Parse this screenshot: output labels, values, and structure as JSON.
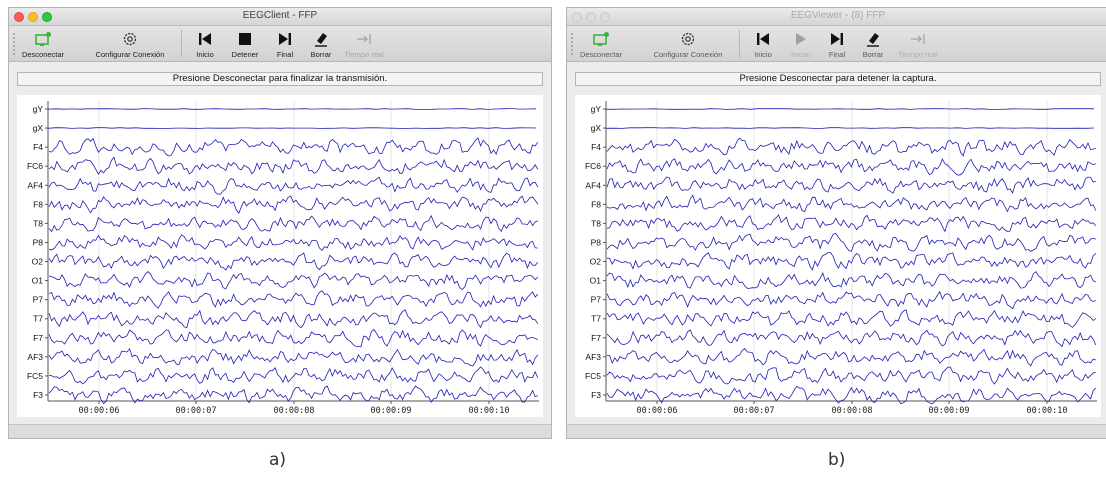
{
  "colors": {
    "trace": "#1e1eb4",
    "grid": "#e6e6e6",
    "accent_green": "#3cb43c"
  },
  "channels": [
    "gY",
    "gX",
    "F4",
    "FC6",
    "AF4",
    "F8",
    "T8",
    "P8",
    "O2",
    "O1",
    "P7",
    "T7",
    "F7",
    "AF3",
    "FC5",
    "F3"
  ],
  "time_ticks": [
    "00:00:06",
    "00:00:07",
    "00:00:08",
    "00:00:09",
    "00:00:10"
  ],
  "windows": [
    {
      "id": "a",
      "title": "EEGClient - FFP",
      "state": "active",
      "toolbar": [
        {
          "key": "disconnect",
          "label": "Desconectar",
          "icon": "disconnect-icon",
          "enabled": true
        },
        {
          "key": "config",
          "label": "Configurar Conexión",
          "icon": "gear-icon",
          "enabled": true
        },
        {
          "key": "start",
          "label": "Inicio",
          "icon": "skip-start-icon",
          "enabled": true
        },
        {
          "key": "stop",
          "label": "Detener",
          "icon": "stop-icon",
          "enabled": true
        },
        {
          "key": "end",
          "label": "Final",
          "icon": "skip-end-icon",
          "enabled": true
        },
        {
          "key": "clear",
          "label": "Borrar",
          "icon": "eraser-icon",
          "enabled": true
        },
        {
          "key": "realtime",
          "label": "Tiempo real",
          "icon": "arrow-to-end-icon",
          "enabled": false
        }
      ],
      "status": "Presione Desconectar para finalizar la transmisión.",
      "caption": "a)"
    },
    {
      "id": "b",
      "title": "EEGViewer - (8) FFP",
      "state": "inactive",
      "toolbar": [
        {
          "key": "disconnect",
          "label": "Desconectar",
          "icon": "disconnect-icon",
          "enabled": true
        },
        {
          "key": "config",
          "label": "Configurar Conexión",
          "icon": "gear-icon",
          "enabled": true
        },
        {
          "key": "start",
          "label": "Inicio",
          "icon": "skip-start-icon",
          "enabled": true
        },
        {
          "key": "play",
          "label": "Iniciar",
          "icon": "play-icon",
          "enabled": false
        },
        {
          "key": "end",
          "label": "Final",
          "icon": "skip-end-icon",
          "enabled": true
        },
        {
          "key": "clear",
          "label": "Borrar",
          "icon": "eraser-icon",
          "enabled": true
        },
        {
          "key": "realtime",
          "label": "Tiempo real",
          "icon": "arrow-to-end-icon",
          "enabled": false
        }
      ],
      "status": "Presione Desconectar para detener la captura.",
      "caption": "b)"
    }
  ]
}
